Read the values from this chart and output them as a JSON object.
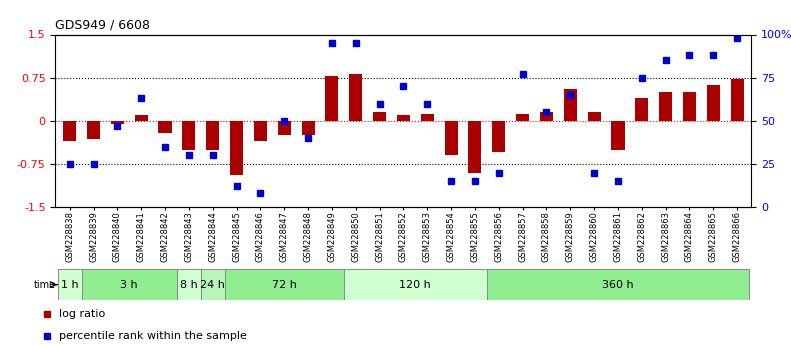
{
  "title": "GDS949 / 6608",
  "samples": [
    "GSM228838",
    "GSM228839",
    "GSM228840",
    "GSM228841",
    "GSM228842",
    "GSM228843",
    "GSM228844",
    "GSM228845",
    "GSM228846",
    "GSM228847",
    "GSM228848",
    "GSM228849",
    "GSM228850",
    "GSM228851",
    "GSM228852",
    "GSM228853",
    "GSM228854",
    "GSM228855",
    "GSM228856",
    "GSM228857",
    "GSM228858",
    "GSM228859",
    "GSM228860",
    "GSM228861",
    "GSM228862",
    "GSM228863",
    "GSM228864",
    "GSM228865",
    "GSM228866"
  ],
  "log_ratio": [
    -0.35,
    -0.32,
    -0.06,
    0.1,
    -0.22,
    -0.5,
    -0.5,
    -0.95,
    -0.35,
    -0.25,
    -0.25,
    0.77,
    0.82,
    0.15,
    0.1,
    0.12,
    -0.6,
    -0.9,
    -0.55,
    0.12,
    0.15,
    0.55,
    0.15,
    -0.5,
    0.4,
    0.5,
    0.5,
    0.62,
    0.72
  ],
  "percentile": [
    25,
    25,
    47,
    63,
    35,
    30,
    30,
    12,
    8,
    50,
    40,
    95,
    95,
    60,
    70,
    60,
    15,
    15,
    20,
    77,
    55,
    65,
    20,
    15,
    75,
    85,
    88,
    88,
    98
  ],
  "time_groups": [
    {
      "label": "1 h",
      "start": 0,
      "end": 1,
      "color": "#d0ffd0"
    },
    {
      "label": "3 h",
      "start": 1,
      "end": 5,
      "color": "#90ee90"
    },
    {
      "label": "8 h",
      "start": 5,
      "end": 6,
      "color": "#d0ffd0"
    },
    {
      "label": "24 h",
      "start": 6,
      "end": 7,
      "color": "#b8f5b8"
    },
    {
      "label": "72 h",
      "start": 7,
      "end": 12,
      "color": "#90ee90"
    },
    {
      "label": "120 h",
      "start": 12,
      "end": 18,
      "color": "#d0ffd0"
    },
    {
      "label": "360 h",
      "start": 18,
      "end": 29,
      "color": "#90ee90"
    }
  ],
  "bar_color": "#aa0000",
  "dot_color": "#0000cc",
  "ylim": [
    -1.5,
    1.5
  ],
  "yticks_left": [
    -1.5,
    -0.75,
    0,
    0.75,
    1.5
  ],
  "yticks_right": [
    0,
    25,
    50,
    75,
    100
  ],
  "background_color": "#ffffff"
}
